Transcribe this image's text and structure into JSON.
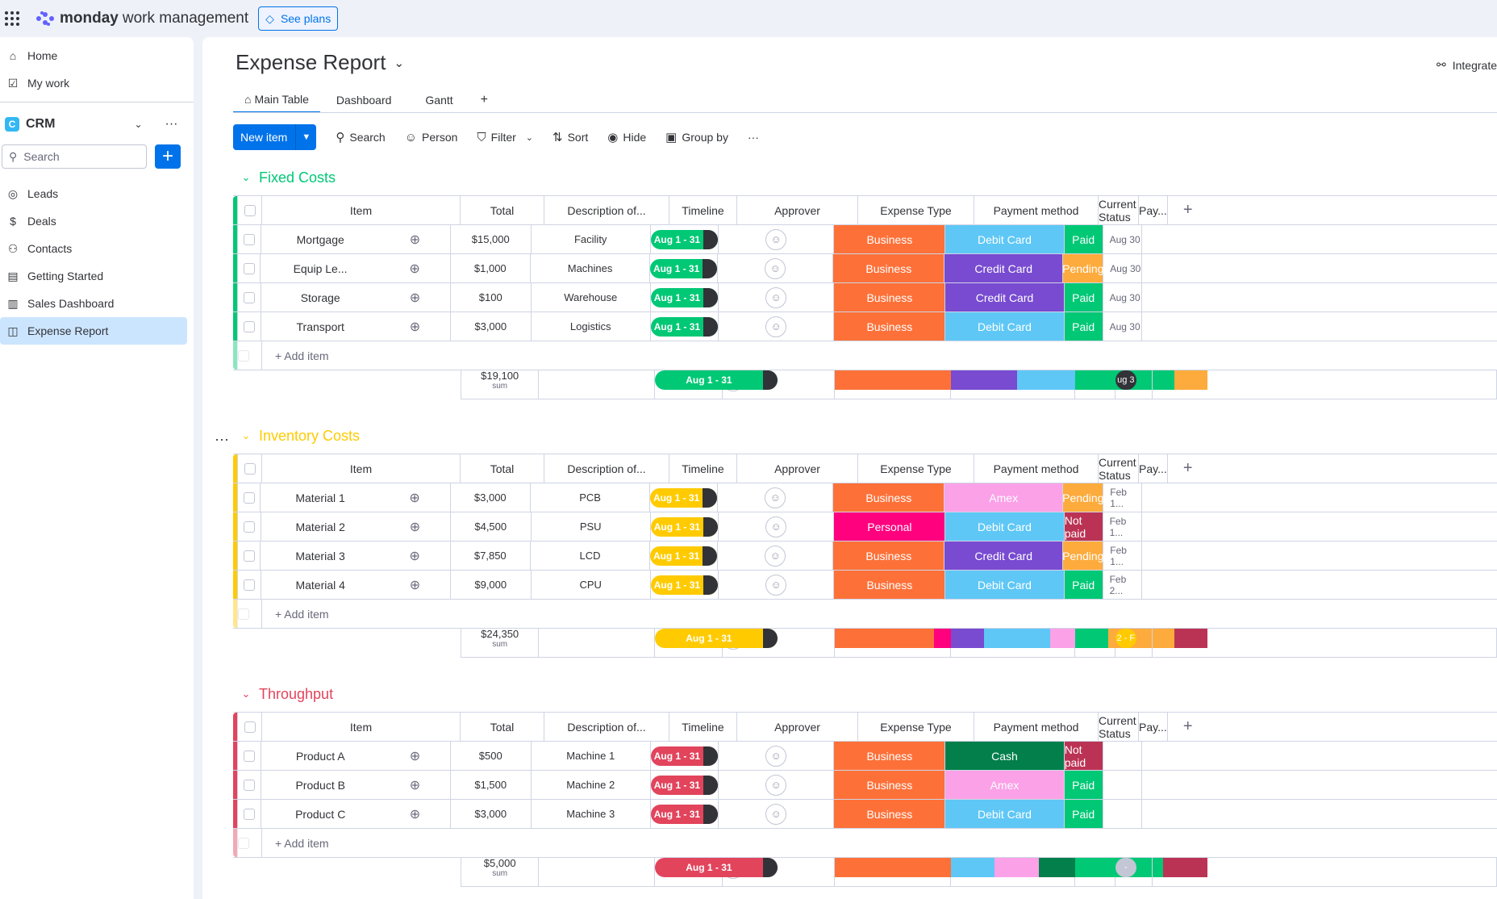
{
  "app": {
    "brand": "monday",
    "brand_suffix": "work management",
    "see_plans": "See plans"
  },
  "sidebar": {
    "home": "Home",
    "my_work": "My work",
    "workspace": "CRM",
    "workspace_badge": "C",
    "search_placeholder": "Search",
    "items": [
      "Leads",
      "Deals",
      "Contacts",
      "Getting Started",
      "Sales Dashboard",
      "Expense Report"
    ]
  },
  "board": {
    "title": "Expense Report",
    "integrate": "Integrate",
    "tabs": [
      "Main Table",
      "Dashboard",
      "Gantt",
      "+"
    ],
    "toolbar": {
      "new_item": "New item",
      "search": "Search",
      "person": "Person",
      "filter": "Filter",
      "sort": "Sort",
      "hide": "Hide",
      "group_by": "Group by"
    },
    "columns": [
      "Item",
      "Total",
      "Description of...",
      "Timeline",
      "Approver",
      "Expense Type",
      "Payment method",
      "Current Status",
      "Pay..."
    ],
    "add_item": "+ Add item",
    "sum_label": "sum"
  },
  "groups": [
    {
      "name": "Fixed Costs",
      "color": "#00c875",
      "pill": "#00c875",
      "pill_text": "#ffffff",
      "sum": "$19,100",
      "sum_timeline": "Aug 1 - 31",
      "pay_summary": "ug 3",
      "pay_color": "#323338",
      "rows": [
        {
          "item": "Mortgage",
          "total": "$15,000",
          "desc": "Facility",
          "timeline": "Aug 1 - 31",
          "type": "Business",
          "type_color": "#fd7139",
          "pay": "Debit Card",
          "pay_color": "#5ec7f6",
          "status": "Paid",
          "status_color": "#00c875",
          "paydate": "Aug 30"
        },
        {
          "item": "Equip Le...",
          "total": "$1,000",
          "desc": "Machines",
          "timeline": "Aug 1 - 31",
          "type": "Business",
          "type_color": "#fd7139",
          "pay": "Credit Card",
          "pay_color": "#784bd1",
          "status": "Pending",
          "status_color": "#fdab3d",
          "paydate": "Aug 30"
        },
        {
          "item": "Storage",
          "total": "$100",
          "desc": "Warehouse",
          "timeline": "Aug 1 - 31",
          "type": "Business",
          "type_color": "#fd7139",
          "pay": "Credit Card",
          "pay_color": "#784bd1",
          "status": "Paid",
          "status_color": "#00c875",
          "paydate": "Aug 30"
        },
        {
          "item": "Transport",
          "total": "$3,000",
          "desc": "Logistics",
          "timeline": "Aug 1 - 31",
          "type": "Business",
          "type_color": "#fd7139",
          "pay": "Debit Card",
          "pay_color": "#5ec7f6",
          "status": "Paid",
          "status_color": "#00c875",
          "paydate": "Aug 30"
        }
      ],
      "bars": {
        "type": [
          [
            "#fd7139",
            1
          ]
        ],
        "pay": [
          [
            "#784bd1",
            1
          ],
          [
            "#5ec7f6",
            1
          ]
        ],
        "status": [
          [
            "#00c875",
            3
          ],
          [
            "#fdab3d",
            1
          ]
        ]
      }
    },
    {
      "name": "Inventory Costs",
      "color": "#ffcb00",
      "pill": "#ffcb00",
      "pill_text": "#ffffff",
      "sum": "$24,350",
      "sum_timeline": "Aug 1 - 31",
      "pay_summary": "2 - F",
      "pay_color": "#ffcb00",
      "rows": [
        {
          "item": "Material 1",
          "total": "$3,000",
          "desc": "PCB",
          "timeline": "Aug 1 - 31",
          "type": "Business",
          "type_color": "#fd7139",
          "pay": "Amex",
          "pay_color": "#fba1e8",
          "status": "Pending",
          "status_color": "#fdab3d",
          "paydate": "Feb 1..."
        },
        {
          "item": "Material 2",
          "total": "$4,500",
          "desc": "PSU",
          "timeline": "Aug 1 - 31",
          "type": "Personal",
          "type_color": "#ff007f",
          "pay": "Debit Card",
          "pay_color": "#5ec7f6",
          "status": "Not paid",
          "status_color": "#bb3354",
          "paydate": "Feb 1..."
        },
        {
          "item": "Material 3",
          "total": "$7,850",
          "desc": "LCD",
          "timeline": "Aug 1 - 31",
          "type": "Business",
          "type_color": "#fd7139",
          "pay": "Credit Card",
          "pay_color": "#784bd1",
          "status": "Pending",
          "status_color": "#fdab3d",
          "paydate": "Feb 1..."
        },
        {
          "item": "Material 4",
          "total": "$9,000",
          "desc": "CPU",
          "timeline": "Aug 1 - 31",
          "type": "Business",
          "type_color": "#fd7139",
          "pay": "Debit Card",
          "pay_color": "#5ec7f6",
          "status": "Paid",
          "status_color": "#00c875",
          "paydate": "Feb 2..."
        }
      ],
      "bars": {
        "type": [
          [
            "#fd7139",
            3
          ],
          [
            "#ff007f",
            1
          ]
        ],
        "pay": [
          [
            "#784bd1",
            1
          ],
          [
            "#5ec7f6",
            2
          ],
          [
            "#fba1e8",
            1
          ]
        ],
        "status": [
          [
            "#00c875",
            1
          ],
          [
            "#fdab3d",
            2
          ],
          [
            "#bb3354",
            1
          ]
        ]
      }
    },
    {
      "name": "Throughput",
      "color": "#e2445c",
      "pill": "#e2445c",
      "pill_text": "#ffffff",
      "sum": "$5,000",
      "sum_timeline": "Aug 1 - 31",
      "pay_summary": "-",
      "pay_color": "#c3c6d4",
      "rows": [
        {
          "item": "Product A",
          "total": "$500",
          "desc": "Machine 1",
          "timeline": "Aug 1 - 31",
          "type": "Business",
          "type_color": "#fd7139",
          "pay": "Cash",
          "pay_color": "#037f4c",
          "status": "Not paid",
          "status_color": "#bb3354",
          "paydate": ""
        },
        {
          "item": "Product B",
          "total": "$1,500",
          "desc": "Machine 2",
          "timeline": "Aug 1 - 31",
          "type": "Business",
          "type_color": "#fd7139",
          "pay": "Amex",
          "pay_color": "#fba1e8",
          "status": "Paid",
          "status_color": "#00c875",
          "paydate": ""
        },
        {
          "item": "Product C",
          "total": "$3,000",
          "desc": "Machine 3",
          "timeline": "Aug 1 - 31",
          "type": "Business",
          "type_color": "#fd7139",
          "pay": "Debit Card",
          "pay_color": "#5ec7f6",
          "status": "Paid",
          "status_color": "#00c875",
          "paydate": ""
        }
      ],
      "bars": {
        "type": [
          [
            "#fd7139",
            1
          ]
        ],
        "pay": [
          [
            "#5ec7f6",
            1
          ],
          [
            "#fba1e8",
            1
          ],
          [
            "#037f4c",
            1
          ]
        ],
        "status": [
          [
            "#00c875",
            2
          ],
          [
            "#bb3354",
            1
          ]
        ]
      }
    }
  ]
}
